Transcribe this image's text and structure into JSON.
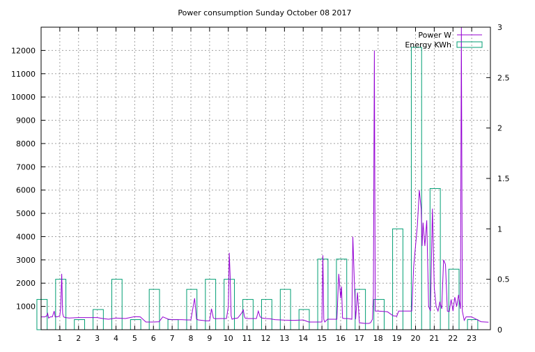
{
  "chart_data": {
    "type": "line",
    "title": "Power consumption Sunday October 08 2017",
    "xlabel": "",
    "ylabel": "",
    "y2label": "",
    "xlim": [
      0,
      24
    ],
    "ylim": [
      0,
      13000
    ],
    "y2lim": [
      0,
      3
    ],
    "grid": true,
    "legend_position": "top-right",
    "x_ticks": [
      "1",
      "2",
      "3",
      "4",
      "5",
      "6",
      "7",
      "8",
      "9",
      "10",
      "11",
      "12",
      "13",
      "14",
      "15",
      "16",
      "17",
      "18",
      "19",
      "20",
      "21",
      "22",
      "23"
    ],
    "y_ticks": [
      "1000",
      "2000",
      "3000",
      "4000",
      "5000",
      "6000",
      "7000",
      "8000",
      "9000",
      "10000",
      "11000",
      "12000"
    ],
    "y2_ticks": [
      "0",
      "0.5",
      "1",
      "1.5",
      "2",
      "2.5",
      "3"
    ],
    "colors": {
      "power": "#9400d3",
      "energy": "#009e73"
    },
    "series": [
      {
        "name": "Energy KWh",
        "type": "bar",
        "axis": "y2",
        "x": [
          0,
          1,
          2,
          3,
          4,
          5,
          6,
          7,
          8,
          9,
          10,
          11,
          12,
          13,
          14,
          15,
          16,
          17,
          18,
          19,
          20,
          21,
          22,
          23
        ],
        "values": [
          0.3,
          0.5,
          0.1,
          0.2,
          0.5,
          0.1,
          0.4,
          0.1,
          0.4,
          0.5,
          0.5,
          0.3,
          0.3,
          0.4,
          0.2,
          0.7,
          0.7,
          0.4,
          0.3,
          1.0,
          2.8,
          1.4,
          0.6,
          0.1
        ]
      },
      {
        "name": "Power W",
        "type": "line",
        "axis": "y",
        "x": [
          0.0,
          0.2,
          0.3,
          0.35,
          0.4,
          0.5,
          0.6,
          0.7,
          0.75,
          0.8,
          0.9,
          1.0,
          1.05,
          1.1,
          1.15,
          1.2,
          1.3,
          1.5,
          2.0,
          2.5,
          3.0,
          3.3,
          3.6,
          4.0,
          4.5,
          5.0,
          5.3,
          5.6,
          6.0,
          6.3,
          6.5,
          6.8,
          7.0,
          7.5,
          7.8,
          8.0,
          8.2,
          8.3,
          8.4,
          8.6,
          8.8,
          9.0,
          9.1,
          9.2,
          9.3,
          9.6,
          9.9,
          10.0,
          10.05,
          10.1,
          10.15,
          10.2,
          10.3,
          10.5,
          10.7,
          10.8,
          10.85,
          10.9,
          11.0,
          11.5,
          11.6,
          11.7,
          11.8,
          12.0,
          12.2,
          12.5,
          13.0,
          13.5,
          14.0,
          14.3,
          14.5,
          15.0,
          15.05,
          15.1,
          15.15,
          15.3,
          15.5,
          15.7,
          15.8,
          15.9,
          16.0,
          16.05,
          16.1,
          16.2,
          16.4,
          16.6,
          16.65,
          16.8,
          16.9,
          17.0,
          17.3,
          17.5,
          17.6,
          17.7,
          17.75,
          17.8,
          17.85,
          17.9,
          18.0,
          18.5,
          18.8,
          19.0,
          19.1,
          19.5,
          19.8,
          19.9,
          20.0,
          20.1,
          20.2,
          20.3,
          20.35,
          20.4,
          20.5,
          20.6,
          20.7,
          20.8,
          20.9,
          21.0,
          21.1,
          21.2,
          21.3,
          21.4,
          21.5,
          21.6,
          21.7,
          21.8,
          21.9,
          22.0,
          22.1,
          22.2,
          22.3,
          22.4,
          22.45,
          22.5,
          22.6,
          22.7,
          23.0,
          23.5,
          23.9
        ],
        "values": [
          550,
          550,
          600,
          700,
          500,
          550,
          550,
          800,
          550,
          550,
          560,
          600,
          1000,
          2400,
          700,
          550,
          520,
          500,
          520,
          520,
          520,
          480,
          450,
          500,
          480,
          560,
          550,
          330,
          330,
          340,
          550,
          450,
          430,
          430,
          420,
          420,
          1350,
          450,
          420,
          400,
          380,
          380,
          900,
          500,
          470,
          480,
          480,
          1000,
          3300,
          2300,
          600,
          450,
          480,
          500,
          700,
          850,
          600,
          500,
          480,
          480,
          800,
          550,
          500,
          480,
          470,
          430,
          410,
          400,
          420,
          330,
          330,
          330,
          3200,
          450,
          330,
          450,
          450,
          450,
          450,
          2400,
          1350,
          1850,
          500,
          480,
          480,
          450,
          4000,
          450,
          1600,
          300,
          270,
          270,
          300,
          450,
          1500,
          12000,
          800,
          800,
          800,
          770,
          600,
          580,
          800,
          800,
          800,
          2700,
          3600,
          4500,
          6000,
          5200,
          3600,
          4600,
          3600,
          4700,
          1000,
          800,
          5200,
          1800,
          1000,
          800,
          1200,
          900,
          3000,
          2800,
          800,
          780,
          1300,
          800,
          1400,
          1000,
          1500,
          900,
          13500,
          800,
          400,
          550,
          550,
          340,
          320
        ]
      }
    ]
  }
}
